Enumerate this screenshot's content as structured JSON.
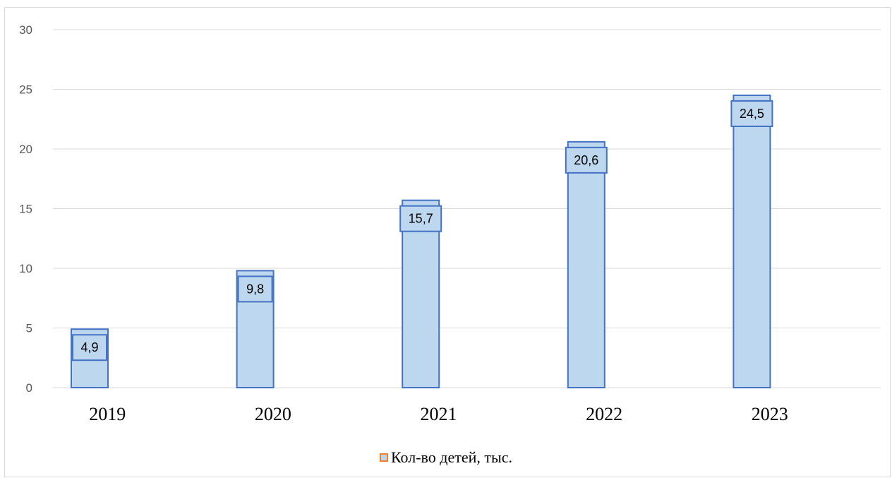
{
  "chart_data": {
    "type": "bar",
    "categories": [
      "2019",
      "2020",
      "2021",
      "2022",
      "2023"
    ],
    "series": [
      {
        "name": "Кол-во детей, тыс.",
        "values": [
          4.9,
          9.8,
          15.7,
          20.6,
          24.5
        ],
        "labels": [
          "4,9",
          "9,8",
          "15,7",
          "20,6",
          "24,5"
        ]
      }
    ],
    "title": "",
    "xlabel": "",
    "ylabel": "",
    "ylim": [
      0,
      30
    ],
    "yticks": [
      0,
      5,
      10,
      15,
      20,
      25,
      30
    ],
    "grid": true,
    "legend_position": "bottom",
    "colors": {
      "bar_fill": "#bdd7ee",
      "bar_stroke": "#4472c4",
      "label_fill": "#bdd7ee",
      "label_stroke": "#4472c4",
      "legend_border": "#ed7d31",
      "gridline": "#d9d9d9",
      "axis_text": "#595959"
    }
  }
}
